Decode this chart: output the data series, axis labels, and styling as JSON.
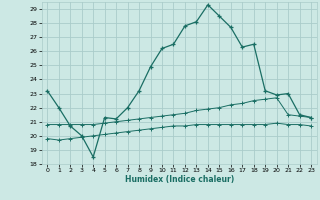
{
  "xlabel": "Humidex (Indice chaleur)",
  "bg_color": "#cce8e4",
  "grid_color": "#aaccca",
  "line_color": "#1a6e64",
  "xlim": [
    -0.5,
    23.5
  ],
  "ylim": [
    18,
    29.5
  ],
  "yticks": [
    18,
    19,
    20,
    21,
    22,
    23,
    24,
    25,
    26,
    27,
    28,
    29
  ],
  "xticks": [
    0,
    1,
    2,
    3,
    4,
    5,
    6,
    7,
    8,
    9,
    10,
    11,
    12,
    13,
    14,
    15,
    16,
    17,
    18,
    19,
    20,
    21,
    22,
    23
  ],
  "line1_x": [
    0,
    1,
    2,
    3,
    4,
    5,
    6,
    7,
    8,
    9,
    10,
    11,
    12,
    13,
    14,
    15,
    16,
    17,
    18,
    19,
    20,
    21,
    22,
    23
  ],
  "line1_y": [
    23.2,
    22.0,
    20.7,
    20.0,
    18.5,
    21.3,
    21.2,
    22.0,
    23.2,
    24.9,
    26.2,
    26.5,
    27.8,
    28.1,
    29.3,
    28.5,
    27.7,
    26.3,
    26.5,
    23.2,
    22.9,
    23.0,
    21.5,
    21.3
  ],
  "line2_x": [
    0,
    1,
    2,
    3,
    4,
    5,
    6,
    7,
    8,
    9,
    10,
    11,
    12,
    13,
    14,
    15,
    16,
    17,
    18,
    19,
    20,
    21,
    22,
    23
  ],
  "line2_y": [
    20.8,
    20.8,
    20.8,
    20.8,
    20.8,
    20.9,
    21.0,
    21.1,
    21.2,
    21.3,
    21.4,
    21.5,
    21.6,
    21.8,
    21.9,
    22.0,
    22.2,
    22.3,
    22.5,
    22.6,
    22.7,
    21.5,
    21.4,
    21.3
  ],
  "line3_x": [
    0,
    1,
    2,
    3,
    4,
    5,
    6,
    7,
    8,
    9,
    10,
    11,
    12,
    13,
    14,
    15,
    16,
    17,
    18,
    19,
    20,
    21,
    22,
    23
  ],
  "line3_y": [
    19.8,
    19.7,
    19.8,
    19.9,
    20.0,
    20.1,
    20.2,
    20.3,
    20.4,
    20.5,
    20.6,
    20.7,
    20.7,
    20.8,
    20.8,
    20.8,
    20.8,
    20.8,
    20.8,
    20.8,
    20.9,
    20.8,
    20.8,
    20.7
  ]
}
